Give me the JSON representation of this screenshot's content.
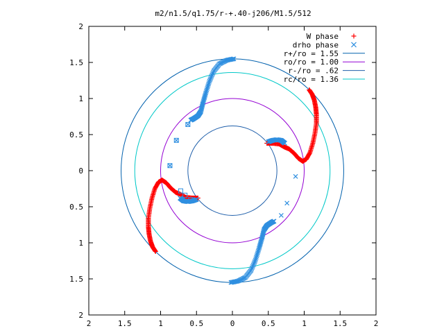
{
  "chart_data": {
    "type": "scatter",
    "title": "m2/n1.5/q1.75/r-+.40-j206/M1.5/512",
    "xlabel": "",
    "ylabel": "",
    "xlim": [
      -2,
      2
    ],
    "ylim": [
      -2,
      2
    ],
    "grid": false,
    "legend_position": "top-right",
    "x_tick_labels": [
      "2",
      "1.5",
      "1",
      "0.5",
      "0",
      "0.5",
      "1",
      "1.5",
      "2"
    ],
    "y_tick_labels": [
      "2",
      "1.5",
      "1",
      "0.5",
      "0",
      "0.5",
      "1",
      "1.5",
      "2"
    ],
    "circles": [
      {
        "name": "r+/ro = 1.55",
        "r": 1.55,
        "color": "#0060ad"
      },
      {
        "name": "ro/ro = 1.00",
        "r": 1.0,
        "color": "#9400d3"
      },
      {
        "name": "r-/ro = .62",
        "r": 0.62,
        "color": "#1f5faa"
      },
      {
        "name": "rc/ro = 1.36",
        "r": 1.36,
        "color": "#00c8c8"
      }
    ],
    "series": [
      {
        "name": "W phase",
        "marker": "plus",
        "color": "#ff0000",
        "arms": [
          [
            [
              1.07,
              1.12
            ],
            [
              1.11,
              1.06
            ],
            [
              1.14,
              0.98
            ],
            [
              1.16,
              0.88
            ],
            [
              1.17,
              0.78
            ],
            [
              1.17,
              0.66
            ],
            [
              1.15,
              0.52
            ],
            [
              1.12,
              0.38
            ],
            [
              1.08,
              0.25
            ],
            [
              1.03,
              0.16
            ],
            [
              0.98,
              0.13
            ],
            [
              0.92,
              0.17
            ],
            [
              0.86,
              0.24
            ],
            [
              0.79,
              0.3
            ],
            [
              0.72,
              0.33
            ],
            [
              0.65,
              0.37
            ],
            [
              0.56,
              0.38
            ],
            [
              0.48,
              0.38
            ]
          ],
          [
            [
              -1.07,
              -1.12
            ],
            [
              -1.11,
              -1.06
            ],
            [
              -1.14,
              -0.98
            ],
            [
              -1.16,
              -0.88
            ],
            [
              -1.17,
              -0.78
            ],
            [
              -1.17,
              -0.66
            ],
            [
              -1.15,
              -0.52
            ],
            [
              -1.12,
              -0.38
            ],
            [
              -1.08,
              -0.25
            ],
            [
              -1.03,
              -0.16
            ],
            [
              -0.98,
              -0.13
            ],
            [
              -0.92,
              -0.17
            ],
            [
              -0.86,
              -0.24
            ],
            [
              -0.79,
              -0.3
            ],
            [
              -0.72,
              -0.33
            ],
            [
              -0.65,
              -0.37
            ],
            [
              -0.56,
              -0.38
            ],
            [
              -0.48,
              -0.38
            ]
          ]
        ]
      },
      {
        "name": "drho phase",
        "marker": "cross",
        "color": "#2f8fe0",
        "arms": [
          [
            [
              0.02,
              1.55
            ],
            [
              -0.08,
              1.53
            ],
            [
              -0.18,
              1.48
            ],
            [
              -0.26,
              1.38
            ],
            [
              -0.32,
              1.24
            ],
            [
              -0.37,
              1.08
            ],
            [
              -0.41,
              0.94
            ],
            [
              -0.44,
              0.82
            ],
            [
              -0.48,
              0.76
            ],
            [
              -0.54,
              0.72
            ],
            [
              -0.58,
              0.7
            ]
          ],
          [
            [
              -0.02,
              -1.55
            ],
            [
              0.08,
              -1.53
            ],
            [
              0.18,
              -1.48
            ],
            [
              0.26,
              -1.38
            ],
            [
              0.32,
              -1.24
            ],
            [
              0.37,
              -1.08
            ],
            [
              0.41,
              -0.94
            ],
            [
              0.44,
              -0.82
            ],
            [
              0.48,
              -0.76
            ],
            [
              0.54,
              -0.72
            ],
            [
              0.58,
              -0.7
            ]
          ],
          [
            [
              0.5,
              0.4
            ],
            [
              0.56,
              0.42
            ],
            [
              0.62,
              0.43
            ],
            [
              0.68,
              0.42
            ],
            [
              0.73,
              0.38
            ]
          ],
          [
            [
              -0.5,
              -0.4
            ],
            [
              -0.56,
              -0.42
            ],
            [
              -0.62,
              -0.43
            ],
            [
              -0.68,
              -0.42
            ],
            [
              -0.73,
              -0.38
            ]
          ]
        ],
        "sparse_points": [
          [
            0.88,
            -0.08
          ],
          [
            0.76,
            -0.45
          ],
          [
            0.68,
            -0.62
          ],
          [
            -0.62,
            0.64
          ],
          [
            -0.78,
            0.42
          ],
          [
            -0.87,
            0.07
          ]
        ],
        "square_points": [
          [
            -0.62,
            0.64
          ],
          [
            -0.78,
            0.42
          ],
          [
            -0.87,
            0.07
          ],
          [
            -0.72,
            -0.28
          ],
          [
            -0.66,
            -0.34
          ],
          [
            -0.58,
            -0.4
          ]
        ]
      }
    ]
  }
}
